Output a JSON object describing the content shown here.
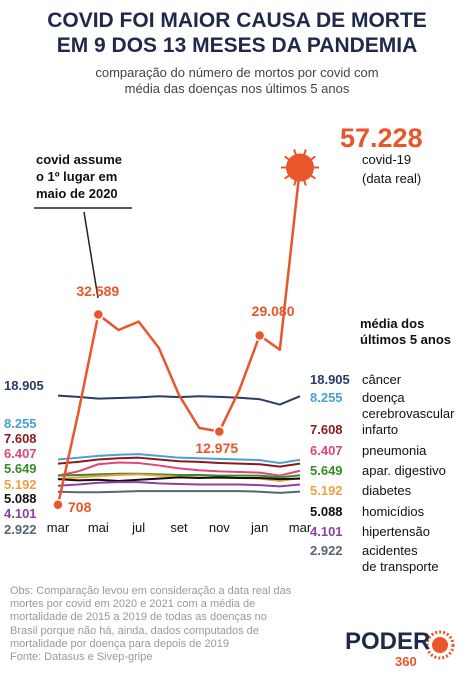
{
  "chart_data": {
    "type": "line",
    "title": "COVID FOI MAIOR CAUSA DE MORTE\nEM 9 DOS 13 MESES DA PANDEMIA",
    "subtitle": "comparação do número de mortos por covid com\nmédia das doenças nos últimos 5 anos",
    "annotation": "covid assume\no 1º lugar em\nmaio de 2020",
    "covid_caption": "covid-19",
    "covid_caption_note": "(data real)",
    "average_heading": "média dos\núltimos 5 anos",
    "categories": [
      "mar",
      null,
      "mai",
      null,
      "jul",
      null,
      "set",
      null,
      "nov",
      null,
      "jan",
      null,
      "mar"
    ],
    "ylim": [
      0,
      60000
    ],
    "series": [
      {
        "name": "câncer",
        "color": "#2b3a67",
        "average": 18905,
        "average_label": "18.905",
        "values": [
          19000,
          18800,
          18500,
          18600,
          18700,
          18900,
          18750,
          18900,
          18800,
          18650,
          18400,
          17500,
          18905
        ]
      },
      {
        "name": "doença\ncerebrovascular",
        "color": "#4a9fd8",
        "average": 8255,
        "average_label": "8.255",
        "values": [
          8300,
          8600,
          8900,
          9100,
          9200,
          8900,
          8600,
          8500,
          8400,
          8300,
          8200,
          7700,
          8255
        ]
      },
      {
        "name": "infarto",
        "color": "#8b1a1a",
        "average": 7608,
        "average_label": "7.608",
        "values": [
          7600,
          7900,
          8300,
          8500,
          8600,
          8300,
          8000,
          7900,
          7700,
          7600,
          7500,
          7100,
          7608
        ]
      },
      {
        "name": "pneumonia",
        "color": "#e0457b",
        "average": 6407,
        "average_label": "6.407",
        "values": [
          5600,
          6300,
          7500,
          7800,
          7700,
          7300,
          6800,
          6500,
          6300,
          6200,
          6100,
          5600,
          6407
        ]
      },
      {
        "name": "apar. digestivo",
        "color": "#3a8a2a",
        "average": 5649,
        "average_label": "5.649",
        "values": [
          5600,
          5700,
          5800,
          5900,
          5900,
          5800,
          5700,
          5700,
          5600,
          5600,
          5600,
          5300,
          5649
        ]
      },
      {
        "name": "diabetes",
        "color": "#f0a040",
        "average": 5192,
        "average_label": "5.192",
        "values": [
          5000,
          5300,
          5500,
          5700,
          5800,
          5600,
          5400,
          5300,
          5200,
          5200,
          5100,
          4700,
          5192
        ]
      },
      {
        "name": "homicídios",
        "color": "#111111",
        "average": 5088,
        "average_label": "5.088",
        "values": [
          5000,
          4800,
          4900,
          4700,
          4900,
          5100,
          5300,
          5200,
          5300,
          5200,
          5200,
          5000,
          5088
        ]
      },
      {
        "name": "hipertensão",
        "color": "#8e3fa8",
        "average": 4101,
        "average_label": "4.101",
        "values": [
          3900,
          4100,
          4400,
          4500,
          4500,
          4300,
          4200,
          4100,
          4100,
          4100,
          4000,
          3800,
          4101
        ]
      },
      {
        "name": "acidentes\nde transporte",
        "color": "#566677",
        "average": 2922,
        "average_label": "2.922",
        "values": [
          2900,
          2800,
          2800,
          2900,
          3000,
          3000,
          3000,
          3000,
          3000,
          3000,
          2900,
          2700,
          2922
        ]
      },
      {
        "name": "covid-19",
        "color": "#e8562a",
        "values": [
          708,
          16000,
          32589,
          30000,
          31400,
          27000,
          19100,
          13600,
          12975,
          20000,
          29080,
          26700,
          57228
        ],
        "value_labels": [
          "708",
          null,
          "32.589",
          null,
          null,
          null,
          null,
          null,
          "12.975",
          null,
          "29.080",
          null,
          "57.228"
        ]
      }
    ]
  },
  "notes": "Obs: Comparação levou em consideração a data real das\nmortes por covid em 2020 e 2021 com a média de\nmortalidade de 2015 a 2019 de todas as doenças no\nBrasil porque não há, ainda, dados computados de\nmortalidade por doença para depois de 2019\nFonte: Datasus e Sivep-gripe",
  "logo": {
    "name": "PODER",
    "number": "360"
  }
}
